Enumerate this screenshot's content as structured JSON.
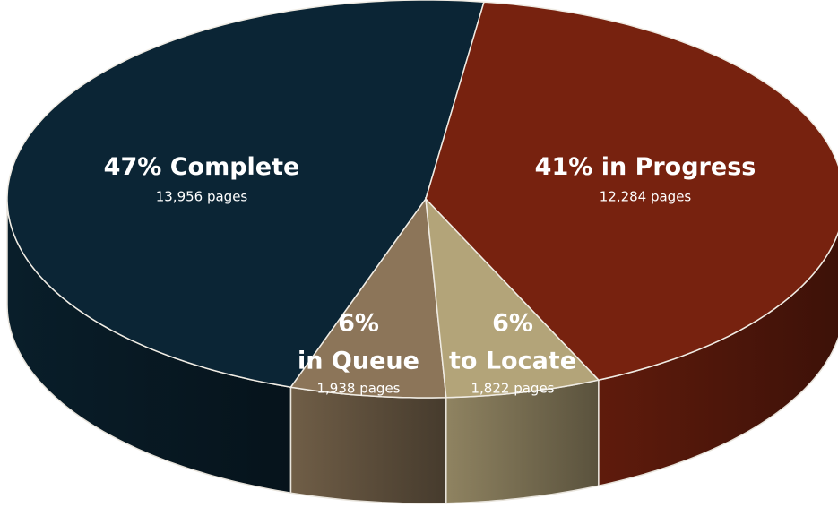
{
  "chart_data": {
    "type": "pie",
    "categories": [
      "Complete",
      "in Queue",
      "to Locate",
      "in Progress"
    ],
    "values": [
      47,
      6,
      6,
      41
    ],
    "value_labels": [
      "47%",
      "6%",
      "6%",
      "41%"
    ],
    "colors": [
      "#0b2535",
      "#8c7559",
      "#b3a479",
      "#77220f"
    ],
    "page_counts": {
      "values": [
        13956,
        1938,
        1822,
        12284
      ],
      "value_labels": [
        "13,956 pages",
        "1,938 pages",
        "1,822 pages",
        "12,284 pages"
      ]
    }
  }
}
